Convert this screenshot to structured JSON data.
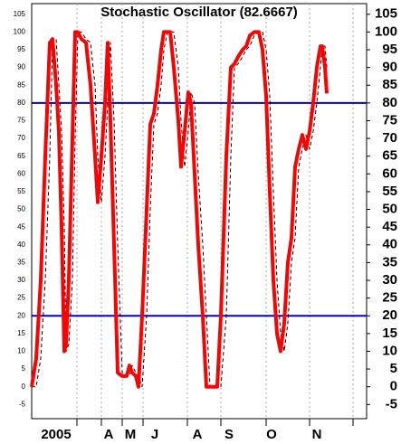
{
  "chart_data": {
    "type": "line",
    "title": "Stochastic Oscillator (82.6667)",
    "x": [
      0,
      5,
      10,
      15,
      20,
      23,
      27,
      30,
      33,
      36,
      38,
      41,
      45,
      48,
      51,
      55,
      60,
      65,
      70,
      73,
      77,
      81,
      84,
      87,
      91,
      95,
      100,
      105,
      108,
      111,
      115,
      118,
      122,
      127,
      131,
      135,
      139,
      143,
      146,
      150,
      153,
      157,
      162,
      165,
      169,
      173,
      176,
      180,
      184,
      189,
      193,
      197,
      201,
      205,
      209,
      215,
      220,
      224,
      228,
      233,
      237,
      241,
      246,
      251,
      255,
      259,
      263,
      267,
      271,
      275,
      279,
      283,
      287,
      291,
      295,
      299,
      303,
      307,
      311,
      315,
      319,
      321,
      324,
      326
    ],
    "series": [
      {
        "color": "#ff0000",
        "style": "solid",
        "values": [
          0,
          8,
          30,
          65,
          97,
          98,
          85,
          72,
          45,
          10,
          12,
          30,
          70,
          100,
          100,
          98,
          97,
          85,
          65,
          52,
          65,
          80,
          97,
          75,
          40,
          4,
          3,
          3,
          6,
          4,
          3,
          0,
          20,
          50,
          74,
          77,
          85,
          95,
          100,
          100,
          100,
          90,
          75,
          62,
          72,
          83,
          80,
          60,
          40,
          20,
          0,
          0,
          0,
          0,
          20,
          65,
          90,
          91,
          93,
          95,
          96,
          99,
          100,
          100,
          95,
          82,
          55,
          30,
          15,
          10,
          18,
          35,
          42,
          62,
          67,
          71,
          67,
          72,
          80,
          90,
          96,
          96,
          90,
          82.6667
        ]
      },
      {
        "color": "#000000",
        "style": "dashed",
        "values": [
          0,
          0,
          8,
          30,
          65,
          97,
          98,
          85,
          72,
          45,
          10,
          12,
          30,
          70,
          100,
          100,
          98,
          97,
          85,
          65,
          52,
          65,
          80,
          97,
          75,
          40,
          4,
          3,
          3,
          6,
          4,
          3,
          0,
          20,
          50,
          74,
          77,
          85,
          95,
          100,
          100,
          100,
          90,
          75,
          62,
          72,
          83,
          80,
          60,
          40,
          20,
          0,
          0,
          0,
          0,
          20,
          65,
          90,
          91,
          93,
          95,
          96,
          99,
          100,
          100,
          95,
          82,
          55,
          30,
          15,
          10,
          18,
          35,
          42,
          62,
          67,
          71,
          67,
          72,
          80,
          90,
          96,
          96,
          90
        ]
      }
    ],
    "xlim": [
      0,
      370
    ],
    "xticks": [
      50,
      77,
      100,
      123,
      172,
      209,
      259,
      307,
      355
    ],
    "xlabels": [
      {
        "value": 27,
        "label": "2005"
      },
      {
        "value": 85,
        "label": "A"
      },
      {
        "value": 109,
        "label": "M"
      },
      {
        "value": 136,
        "label": "J"
      },
      {
        "value": 183,
        "label": "A"
      },
      {
        "value": 218,
        "label": "S"
      },
      {
        "value": 265,
        "label": "O"
      },
      {
        "value": 315,
        "label": "N"
      }
    ],
    "ylim": [
      -9,
      108
    ],
    "yticks": [
      -5,
      0,
      5,
      10,
      15,
      20,
      25,
      30,
      35,
      40,
      45,
      50,
      55,
      60,
      65,
      70,
      75,
      80,
      85,
      90,
      95,
      100,
      105
    ],
    "hlines": [
      80,
      20
    ],
    "hline_color": "#0000cc",
    "grid": true
  }
}
